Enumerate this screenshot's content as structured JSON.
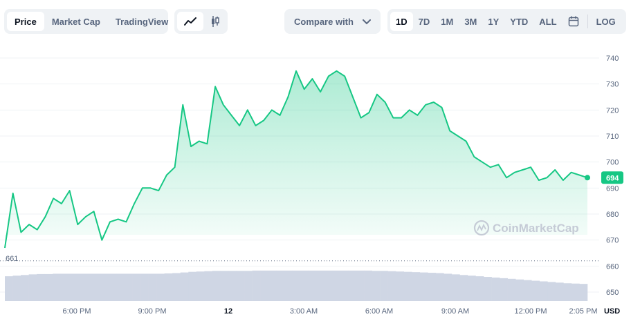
{
  "toolbar": {
    "type_tabs": [
      "Price",
      "Market Cap",
      "TradingView"
    ],
    "active_type": "Price",
    "chart_styles": [
      "line-chart-icon",
      "candlestick-icon"
    ],
    "compare_label": "Compare with",
    "ranges": [
      "1D",
      "7D",
      "1M",
      "3M",
      "1Y",
      "YTD",
      "ALL"
    ],
    "active_range": "1D",
    "calendar_icon": "calendar-icon",
    "scale_label": "LOG"
  },
  "watermark": "CoinMarketCap",
  "colors": {
    "line": "#16c784",
    "accent": "#16c784",
    "volume": "#cfd6e4"
  },
  "chart_data": {
    "type": "area",
    "title": "",
    "xlabel": "",
    "ylabel": "",
    "y_unit": "USD",
    "ylim": [
      650,
      740
    ],
    "y_ticks": [
      740,
      730,
      720,
      710,
      700,
      690,
      680,
      670,
      660,
      650
    ],
    "x_ticks": [
      "6:00 PM",
      "9:00 PM",
      "12",
      "3:00 AM",
      "6:00 AM",
      "9:00 AM",
      "12:00 PM",
      "2:05 PM"
    ],
    "current_price": "694",
    "open_reference": "661",
    "grid": true,
    "x": [
      "3:40 PM",
      "4:00 PM",
      "4:10 PM",
      "4:20 PM",
      "4:40 PM",
      "5:00 PM",
      "5:20 PM",
      "5:40 PM",
      "6:00 PM",
      "6:15 PM",
      "6:30 PM",
      "6:50 PM",
      "7:10 PM",
      "7:30 PM",
      "7:50 PM",
      "8:10 PM",
      "8:20 PM",
      "8:40 PM",
      "9:00 PM",
      "9:10 PM",
      "9:30 PM",
      "9:50 PM",
      "10:10 PM",
      "10:30 PM",
      "10:40 PM",
      "10:50 PM",
      "11:00 PM",
      "11:20 PM",
      "11:40 PM",
      "12:00 AM",
      "12:10 AM",
      "12:30 AM",
      "12:50 AM",
      "1:10 AM",
      "1:30 AM",
      "1:50 AM",
      "2:10 AM",
      "2:30 AM",
      "2:50 AM",
      "3:10 AM",
      "3:30 AM",
      "3:50 AM",
      "4:10 AM",
      "4:30 AM",
      "4:50 AM",
      "5:10 AM",
      "5:30 AM",
      "5:50 AM",
      "6:10 AM",
      "6:30 AM",
      "6:50 AM",
      "7:10 AM",
      "7:30 AM",
      "7:50 AM",
      "8:10 AM",
      "8:30 AM",
      "8:50 AM",
      "9:10 AM",
      "9:30 AM",
      "9:50 AM",
      "10:10 AM",
      "10:30 AM",
      "10:50 AM",
      "11:10 AM",
      "11:30 AM",
      "11:50 AM",
      "12:10 PM",
      "12:30 PM",
      "12:50 PM",
      "1:10 PM",
      "1:30 PM",
      "1:50 PM",
      "2:05 PM"
    ],
    "series": [
      {
        "name": "",
        "values": [
          667,
          688,
          673,
          676,
          674,
          679,
          686,
          684,
          689,
          676,
          679,
          681,
          670,
          677,
          678,
          677,
          684,
          690,
          690,
          689,
          695,
          698,
          722,
          706,
          708,
          707,
          729,
          722,
          718,
          714,
          720,
          714,
          716,
          720,
          718,
          725,
          735,
          728,
          732,
          727,
          733,
          735,
          733,
          725,
          717,
          719,
          726,
          723,
          717,
          717,
          720,
          718,
          722,
          723,
          721,
          712,
          710,
          708,
          702,
          700,
          698,
          699,
          694,
          696,
          697,
          698,
          693,
          694,
          697,
          693,
          696,
          695,
          694
        ]
      }
    ],
    "volume_relative": [
      0.78,
      0.8,
      0.82,
      0.84,
      0.85,
      0.85,
      0.86,
      0.86,
      0.86,
      0.86,
      0.86,
      0.86,
      0.86,
      0.86,
      0.86,
      0.86,
      0.86,
      0.86,
      0.86,
      0.86,
      0.87,
      0.88,
      0.9,
      0.92,
      0.93,
      0.94,
      0.95,
      0.95,
      0.95,
      0.95,
      0.95,
      0.96,
      0.96,
      0.96,
      0.96,
      0.96,
      0.96,
      0.96,
      0.96,
      0.96,
      0.96,
      0.96,
      0.96,
      0.96,
      0.96,
      0.96,
      0.95,
      0.95,
      0.94,
      0.93,
      0.92,
      0.91,
      0.9,
      0.89,
      0.88,
      0.86,
      0.84,
      0.82,
      0.8,
      0.78,
      0.76,
      0.74,
      0.72,
      0.7,
      0.68,
      0.66,
      0.64,
      0.62,
      0.6,
      0.58,
      0.56,
      0.55,
      0.54
    ]
  }
}
